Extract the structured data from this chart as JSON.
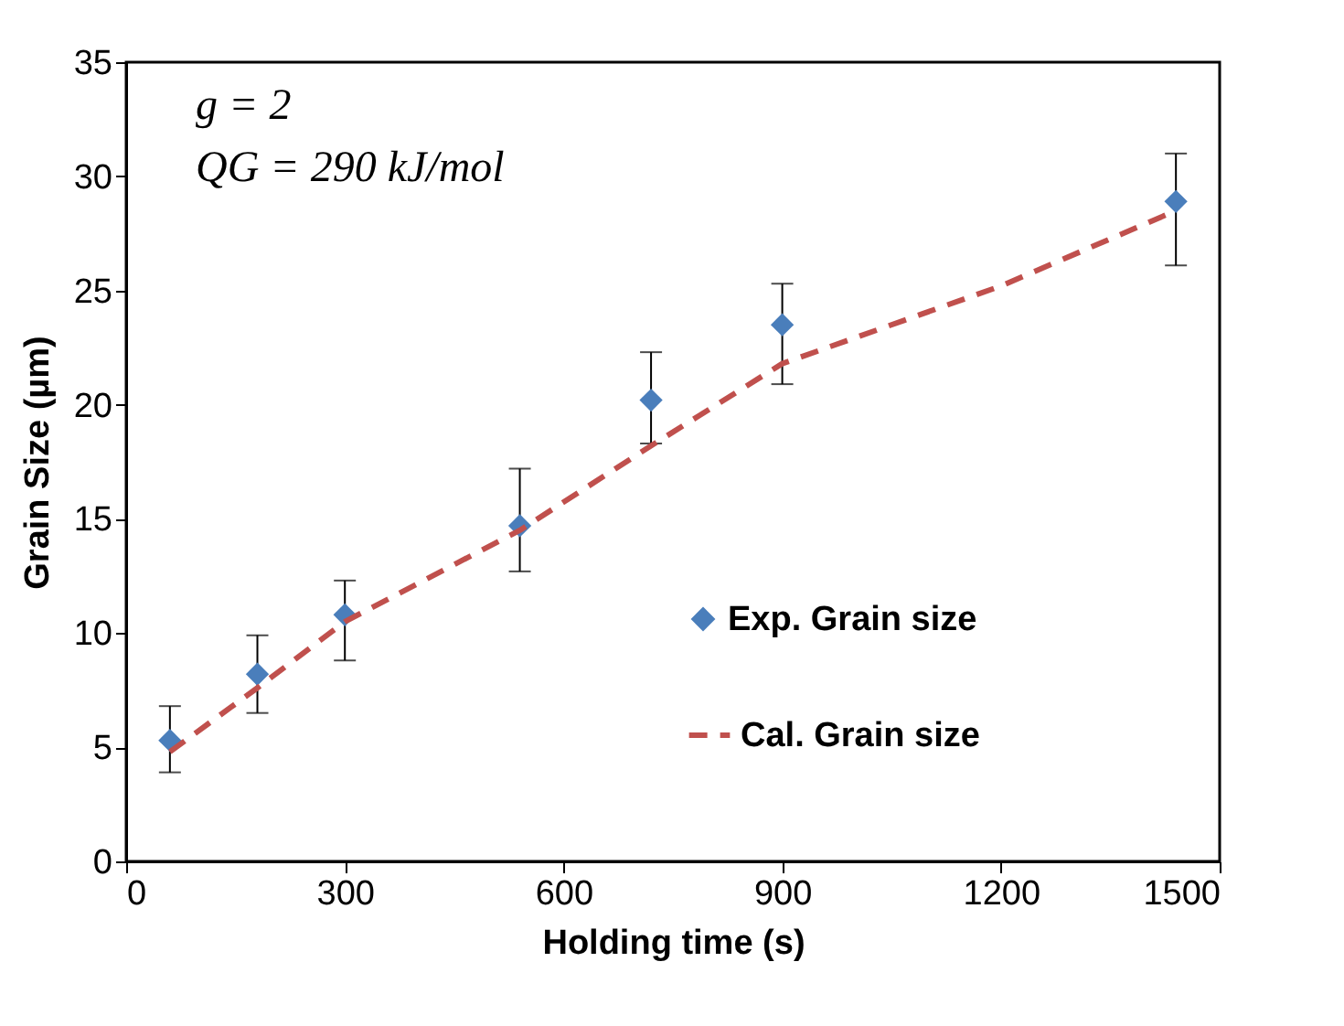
{
  "chart_data": {
    "type": "scatter",
    "xlabel": "Holding time (s)",
    "ylabel": "Grain Size (µm)",
    "xlim": [
      0,
      1500
    ],
    "xticks": [
      0,
      300,
      600,
      900,
      1200,
      1500
    ],
    "ylim": [
      0,
      35
    ],
    "yticks": [
      0,
      5,
      10,
      15,
      20,
      25,
      30,
      35
    ],
    "grid": false,
    "legend": "bottom right",
    "marker": "diamond",
    "annotations": [
      "g = 2",
      "QG = 290 kJ/mol"
    ],
    "series": [
      {
        "name": "Exp. Grain size",
        "color": "#4a7ebb",
        "x": [
          60,
          180,
          300,
          540,
          720,
          900,
          1440
        ],
        "values": [
          5.3,
          8.2,
          10.8,
          14.7,
          20.2,
          23.5,
          28.9
        ],
        "errors": [
          [
            3.9,
            6.8
          ],
          [
            6.5,
            9.9
          ],
          [
            8.8,
            12.3
          ],
          [
            12.7,
            17.2
          ],
          [
            18.3,
            22.3
          ],
          [
            20.9,
            25.3
          ],
          [
            26.1,
            31.0
          ]
        ]
      },
      {
        "name": "Cal. Grain size",
        "type": "line",
        "line_style": "dashed",
        "marker": "none",
        "color": "#c0504d",
        "x": [
          60,
          180,
          300,
          540,
          720,
          900,
          1200,
          1440
        ],
        "values": [
          4.8,
          7.6,
          10.5,
          14.5,
          18.2,
          21.8,
          25.2,
          28.5
        ]
      }
    ]
  }
}
